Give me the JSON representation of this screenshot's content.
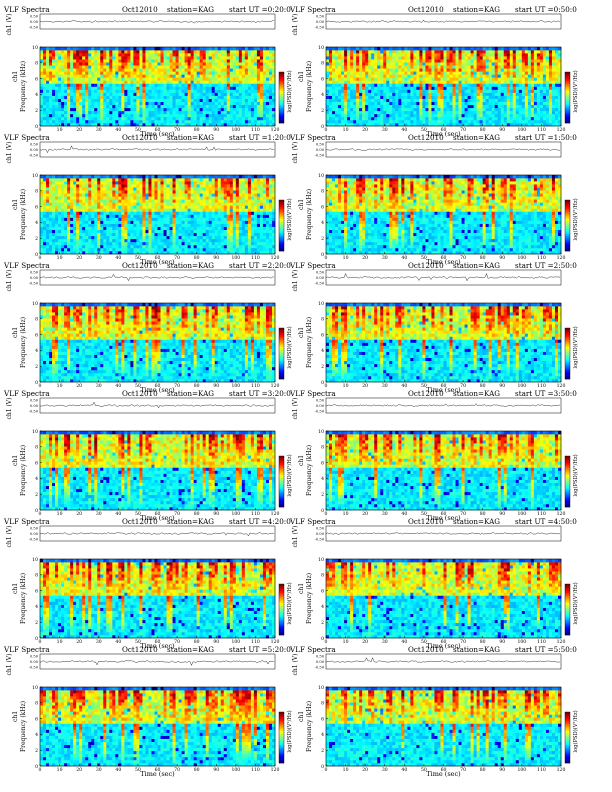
{
  "figure": {
    "title": "VLF Spectra",
    "month": "Oct12010",
    "station": "station=KAG",
    "ut_prefix": "start UT",
    "labels": {
      "ch1_axis": "ch1 (V)",
      "ch1_label": "ch1",
      "freq_axis": "Frequency (kHz)",
      "time_axis": "Time (sec)",
      "colorbar_label": "log(PSD)(V²/Hz)"
    }
  },
  "chart_data": [
    {
      "type": "heatmap",
      "start_ut": "=0:20:0",
      "xlabel": "Time (sec)",
      "ylabel": "Frequency (kHz)",
      "xlim": [
        0,
        120
      ],
      "ylim": [
        0,
        10
      ],
      "xticks": [
        0,
        10,
        20,
        30,
        40,
        50,
        60,
        70,
        80,
        90,
        100,
        110,
        120
      ],
      "yticks": [
        0,
        2,
        4,
        6,
        8,
        10
      ],
      "ch1_yticks": [
        "0.50",
        "0.00",
        "-0.50"
      ]
    },
    {
      "type": "heatmap",
      "start_ut": "=0:50:0",
      "xlabel": "Time (sec)",
      "ylabel": "Frequency (kHz)",
      "xlim": [
        0,
        120
      ],
      "ylim": [
        0,
        10
      ],
      "xticks": [
        0,
        10,
        20,
        30,
        40,
        50,
        60,
        70,
        80,
        90,
        100,
        110,
        120
      ],
      "yticks": [
        0,
        2,
        4,
        6,
        8,
        10
      ],
      "ch1_yticks": [
        "0.50",
        "0.00",
        "-0.50"
      ]
    },
    {
      "type": "heatmap",
      "start_ut": "=1:20:0",
      "xlabel": "Time (sec)",
      "ylabel": "Frequency (kHz)",
      "xlim": [
        0,
        120
      ],
      "ylim": [
        0,
        10
      ],
      "xticks": [
        0,
        10,
        20,
        30,
        40,
        50,
        60,
        70,
        80,
        90,
        100,
        110,
        120
      ],
      "yticks": [
        0,
        2,
        4,
        6,
        8,
        10
      ],
      "ch1_yticks": [
        "0.50",
        "0.00",
        "-0.50"
      ]
    },
    {
      "type": "heatmap",
      "start_ut": "=1:50:0",
      "xlabel": "Time (sec)",
      "ylabel": "Frequency (kHz)",
      "xlim": [
        0,
        120
      ],
      "ylim": [
        0,
        10
      ],
      "xticks": [
        0,
        10,
        20,
        30,
        40,
        50,
        60,
        70,
        80,
        90,
        100,
        110,
        120
      ],
      "yticks": [
        0,
        2,
        4,
        6,
        8,
        10
      ],
      "ch1_yticks": [
        "0.50",
        "0.00",
        "-0.50"
      ]
    },
    {
      "type": "heatmap",
      "start_ut": "=2:20:0",
      "xlabel": "Time (sec)",
      "ylabel": "Frequency (kHz)",
      "xlim": [
        0,
        120
      ],
      "ylim": [
        0,
        10
      ],
      "xticks": [
        0,
        10,
        20,
        30,
        40,
        50,
        60,
        70,
        80,
        90,
        100,
        110,
        120
      ],
      "yticks": [
        0,
        2,
        4,
        6,
        8,
        10
      ],
      "ch1_yticks": [
        "0.50",
        "0.00",
        "-0.50"
      ]
    },
    {
      "type": "heatmap",
      "start_ut": "=2:50:0",
      "xlabel": "Time (sec)",
      "ylabel": "Frequency (kHz)",
      "xlim": [
        0,
        120
      ],
      "ylim": [
        0,
        10
      ],
      "xticks": [
        0,
        10,
        20,
        30,
        40,
        50,
        60,
        70,
        80,
        90,
        100,
        110,
        120
      ],
      "yticks": [
        0,
        2,
        4,
        6,
        8,
        10
      ],
      "ch1_yticks": [
        "0.50",
        "0.00",
        "-0.50"
      ]
    },
    {
      "type": "heatmap",
      "start_ut": "=3:20:0",
      "xlabel": "Time (sec)",
      "ylabel": "Frequency (kHz)",
      "xlim": [
        0,
        120
      ],
      "ylim": [
        0,
        10
      ],
      "xticks": [
        0,
        10,
        20,
        30,
        40,
        50,
        60,
        70,
        80,
        90,
        100,
        110,
        120
      ],
      "yticks": [
        0,
        2,
        4,
        6,
        8,
        10
      ],
      "ch1_yticks": [
        "0.50",
        "0.00",
        "-0.50"
      ]
    },
    {
      "type": "heatmap",
      "start_ut": "=3:50:0",
      "xlabel": "Time (sec)",
      "ylabel": "Frequency (kHz)",
      "xlim": [
        0,
        120
      ],
      "ylim": [
        0,
        10
      ],
      "xticks": [
        0,
        10,
        20,
        30,
        40,
        50,
        60,
        70,
        80,
        90,
        100,
        110,
        120
      ],
      "yticks": [
        0,
        2,
        4,
        6,
        8,
        10
      ],
      "ch1_yticks": [
        "0.50",
        "0.00",
        "-0.50"
      ]
    },
    {
      "type": "heatmap",
      "start_ut": "=4:20:0",
      "xlabel": "Time (sec)",
      "ylabel": "Frequency (kHz)",
      "xlim": [
        0,
        120
      ],
      "ylim": [
        0,
        10
      ],
      "xticks": [
        0,
        10,
        20,
        30,
        40,
        50,
        60,
        70,
        80,
        90,
        100,
        110,
        120
      ],
      "yticks": [
        0,
        2,
        4,
        6,
        8,
        10
      ],
      "ch1_yticks": [
        "0.50",
        "0.00",
        "-0.50"
      ]
    },
    {
      "type": "heatmap",
      "start_ut": "=4:50:0",
      "xlabel": "Time (sec)",
      "ylabel": "Frequency (kHz)",
      "xlim": [
        0,
        120
      ],
      "ylim": [
        0,
        10
      ],
      "xticks": [
        0,
        10,
        20,
        30,
        40,
        50,
        60,
        70,
        80,
        90,
        100,
        110,
        120
      ],
      "yticks": [
        0,
        2,
        4,
        6,
        8,
        10
      ],
      "ch1_yticks": [
        "0.50",
        "0.00",
        "-0.50"
      ]
    },
    {
      "type": "heatmap",
      "start_ut": "=5:20:0",
      "xlabel": "Time (sec)",
      "ylabel": "Frequency (kHz)",
      "xlim": [
        0,
        120
      ],
      "ylim": [
        0,
        10
      ],
      "xticks": [
        0,
        10,
        20,
        30,
        40,
        50,
        60,
        70,
        80,
        90,
        100,
        110,
        120
      ],
      "yticks": [
        0,
        2,
        4,
        6,
        8,
        10
      ],
      "ch1_yticks": [
        "0.50",
        "0.00",
        "-0.50"
      ]
    },
    {
      "type": "heatmap",
      "start_ut": "=5:50:0",
      "xlabel": "Time (sec)",
      "ylabel": "Frequency (kHz)",
      "xlim": [
        0,
        120
      ],
      "ylim": [
        0,
        10
      ],
      "xticks": [
        0,
        10,
        20,
        30,
        40,
        50,
        60,
        70,
        80,
        90,
        100,
        110,
        120
      ],
      "yticks": [
        0,
        2,
        4,
        6,
        8,
        10
      ],
      "ch1_yticks": [
        "0.50",
        "0.00",
        "-0.50"
      ]
    }
  ],
  "colors": {
    "colormap": [
      "#00007f",
      "#0000ff",
      "#007fff",
      "#00ffff",
      "#7fff7f",
      "#ffff00",
      "#ff7f00",
      "#ff0000",
      "#7f0000"
    ],
    "background": "#ffffff",
    "axis": "#000000"
  }
}
